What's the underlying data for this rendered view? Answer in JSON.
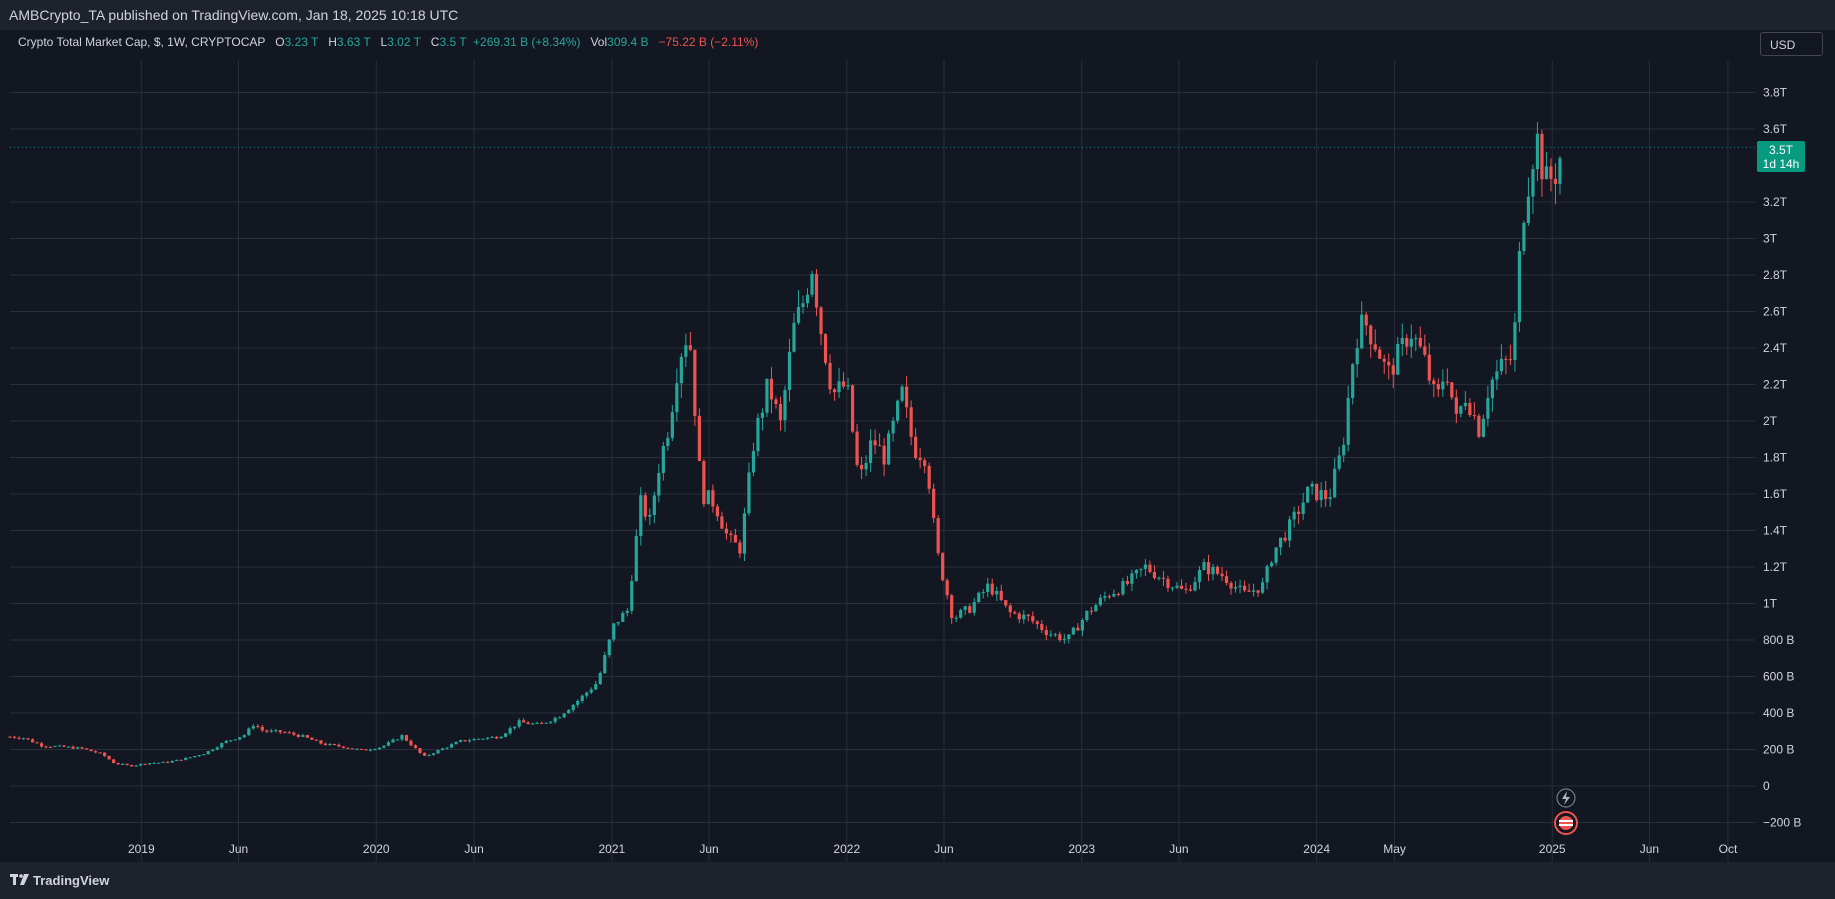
{
  "header": {
    "publisher": "AMBCrypto_TA published on TradingView.com, Jan 18, 2025 10:18 UTC"
  },
  "symbol": {
    "name": "Crypto Total Market Cap, $, 1W, CRYPTOCAP",
    "o_label": "O",
    "o_value": "3.23 T",
    "h_label": "H",
    "h_value": "3.63 T",
    "l_label": "L",
    "l_value": "3.02 T",
    "c_label": "C",
    "c_value": "3.5 T",
    "change": "+269.31 B (+8.34%)",
    "vol_label": "Vol",
    "vol_value": "309.4 B",
    "vol_change": "−75.22 B (−2.11%)"
  },
  "currency_button": "USD",
  "price_badge": {
    "price": "3.5T",
    "countdown": "1d 14h"
  },
  "footer": {
    "brand": "TradingView"
  },
  "colors": {
    "up": "#26a69a",
    "down": "#ef5350",
    "background": "#131722",
    "grid": "#2a2e39",
    "badge": "#089981"
  },
  "chart_data": {
    "type": "candlestick",
    "y_unit": "USD (billions)",
    "ylim": [
      -200,
      3800
    ],
    "y_ticks": [
      {
        "value": 3800,
        "label": "3.8T"
      },
      {
        "value": 3600,
        "label": "3.6T"
      },
      {
        "value": 3200,
        "label": "3.2T"
      },
      {
        "value": 3000,
        "label": "3T"
      },
      {
        "value": 2800,
        "label": "2.8T"
      },
      {
        "value": 2600,
        "label": "2.6T"
      },
      {
        "value": 2400,
        "label": "2.4T"
      },
      {
        "value": 2200,
        "label": "2.2T"
      },
      {
        "value": 2000,
        "label": "2T"
      },
      {
        "value": 1800,
        "label": "1.8T"
      },
      {
        "value": 1600,
        "label": "1.6T"
      },
      {
        "value": 1400,
        "label": "1.4T"
      },
      {
        "value": 1200,
        "label": "1.2T"
      },
      {
        "value": 1000,
        "label": "1T"
      },
      {
        "value": 800,
        "label": "800 B"
      },
      {
        "value": 600,
        "label": "600 B"
      },
      {
        "value": 400,
        "label": "400 B"
      },
      {
        "value": 200,
        "label": "200 B"
      },
      {
        "value": 0,
        "label": "0"
      },
      {
        "value": -200,
        "label": "−200 B"
      }
    ],
    "x_ticks": [
      {
        "date": "2019-01-01",
        "label": "2019"
      },
      {
        "date": "2019-06-01",
        "label": "Jun"
      },
      {
        "date": "2020-01-01",
        "label": "2020"
      },
      {
        "date": "2020-06-01",
        "label": "Jun"
      },
      {
        "date": "2021-01-01",
        "label": "2021"
      },
      {
        "date": "2021-06-01",
        "label": "Jun"
      },
      {
        "date": "2022-01-01",
        "label": "2022"
      },
      {
        "date": "2022-06-01",
        "label": "Jun"
      },
      {
        "date": "2023-01-01",
        "label": "2023"
      },
      {
        "date": "2023-06-01",
        "label": "Jun"
      },
      {
        "date": "2024-01-01",
        "label": "2024"
      },
      {
        "date": "2024-05-01",
        "label": "May"
      },
      {
        "date": "2025-01-01",
        "label": "2025"
      },
      {
        "date": "2025-06-01",
        "label": "Jun"
      },
      {
        "date": "2025-10-01",
        "label": "Oct"
      }
    ],
    "xlim": [
      "2018-06-11",
      "2025-11-12"
    ],
    "last_close": 3500,
    "grid": true,
    "close_series": [
      [
        "2018-06-11",
        270
      ],
      [
        "2018-07-01",
        265
      ],
      [
        "2018-08-01",
        220
      ],
      [
        "2018-09-01",
        215
      ],
      [
        "2018-10-01",
        205
      ],
      [
        "2018-11-01",
        175
      ],
      [
        "2018-11-20",
        125
      ],
      [
        "2018-12-15",
        110
      ],
      [
        "2019-01-10",
        125
      ],
      [
        "2019-02-10",
        130
      ],
      [
        "2019-03-10",
        150
      ],
      [
        "2019-04-10",
        180
      ],
      [
        "2019-05-10",
        240
      ],
      [
        "2019-06-10",
        280
      ],
      [
        "2019-06-25",
        340
      ],
      [
        "2019-07-10",
        300
      ],
      [
        "2019-08-10",
        295
      ],
      [
        "2019-09-10",
        270
      ],
      [
        "2019-10-10",
        230
      ],
      [
        "2019-11-10",
        215
      ],
      [
        "2019-12-10",
        195
      ],
      [
        "2020-01-10",
        215
      ],
      [
        "2020-02-10",
        275
      ],
      [
        "2020-03-15",
        160
      ],
      [
        "2020-04-10",
        200
      ],
      [
        "2020-05-10",
        245
      ],
      [
        "2020-06-10",
        260
      ],
      [
        "2020-07-10",
        270
      ],
      [
        "2020-08-10",
        350
      ],
      [
        "2020-09-10",
        335
      ],
      [
        "2020-10-10",
        380
      ],
      [
        "2020-11-10",
        470
      ],
      [
        "2020-12-10",
        570
      ],
      [
        "2021-01-05",
        890
      ],
      [
        "2021-01-25",
        960
      ],
      [
        "2021-02-15",
        1550
      ],
      [
        "2021-03-01",
        1450
      ],
      [
        "2021-03-15",
        1750
      ],
      [
        "2021-04-01",
        2000
      ],
      [
        "2021-04-15",
        2350
      ],
      [
        "2021-05-01",
        2500
      ],
      [
        "2021-05-20",
        1600
      ],
      [
        "2021-06-10",
        1550
      ],
      [
        "2021-07-01",
        1350
      ],
      [
        "2021-07-20",
        1300
      ],
      [
        "2021-08-10",
        1900
      ],
      [
        "2021-09-01",
        2200
      ],
      [
        "2021-09-20",
        1980
      ],
      [
        "2021-10-10",
        2500
      ],
      [
        "2021-10-25",
        2650
      ],
      [
        "2021-11-08",
        2850
      ],
      [
        "2021-11-22",
        2500
      ],
      [
        "2021-12-10",
        2150
      ],
      [
        "2022-01-01",
        2200
      ],
      [
        "2022-01-20",
        1660
      ],
      [
        "2022-02-10",
        1900
      ],
      [
        "2022-03-01",
        1800
      ],
      [
        "2022-03-28",
        2150
      ],
      [
        "2022-04-15",
        1850
      ],
      [
        "2022-05-05",
        1800
      ],
      [
        "2022-05-20",
        1300
      ],
      [
        "2022-06-15",
        920
      ],
      [
        "2022-07-10",
        970
      ],
      [
        "2022-08-10",
        1100
      ],
      [
        "2022-09-10",
        950
      ],
      [
        "2022-10-10",
        920
      ],
      [
        "2022-11-10",
        840
      ],
      [
        "2022-12-10",
        800
      ],
      [
        "2023-01-10",
        950
      ],
      [
        "2023-02-10",
        1050
      ],
      [
        "2023-03-10",
        1100
      ],
      [
        "2023-04-10",
        1200
      ],
      [
        "2023-05-10",
        1130
      ],
      [
        "2023-06-10",
        1060
      ],
      [
        "2023-07-10",
        1200
      ],
      [
        "2023-08-10",
        1150
      ],
      [
        "2023-09-10",
        1050
      ],
      [
        "2023-10-10",
        1100
      ],
      [
        "2023-10-25",
        1280
      ],
      [
        "2023-11-20",
        1420
      ],
      [
        "2023-12-20",
        1620
      ],
      [
        "2024-01-20",
        1580
      ],
      [
        "2024-02-10",
        1850
      ],
      [
        "2024-03-01",
        2450
      ],
      [
        "2024-03-15",
        2550
      ],
      [
        "2024-04-05",
        2400
      ],
      [
        "2024-04-20",
        2250
      ],
      [
        "2024-05-10",
        2380
      ],
      [
        "2024-05-25",
        2500
      ],
      [
        "2024-06-15",
        2350
      ],
      [
        "2024-07-05",
        2100
      ],
      [
        "2024-07-20",
        2300
      ],
      [
        "2024-08-05",
        2000
      ],
      [
        "2024-08-20",
        2150
      ],
      [
        "2024-09-10",
        1950
      ],
      [
        "2024-09-25",
        2200
      ],
      [
        "2024-10-15",
        2300
      ],
      [
        "2024-11-01",
        2350
      ],
      [
        "2024-11-15",
        3100
      ],
      [
        "2024-12-01",
        3450
      ],
      [
        "2024-12-10",
        3550
      ],
      [
        "2024-12-20",
        3300
      ],
      [
        "2025-01-05",
        3350
      ],
      [
        "2025-01-18",
        3500
      ]
    ]
  }
}
